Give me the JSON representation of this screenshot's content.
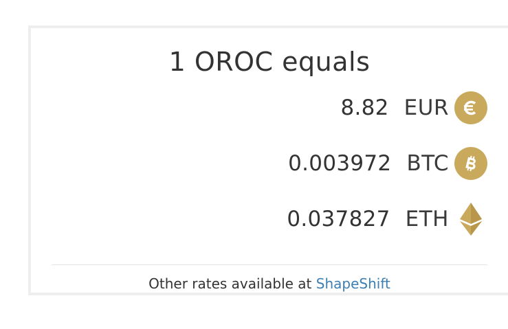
{
  "header": {
    "title": "1 OROC equals"
  },
  "rates": [
    {
      "value": "8.82",
      "unit": "EUR",
      "icon": "euro-icon"
    },
    {
      "value": "0.003972",
      "unit": "BTC",
      "icon": "bitcoin-icon"
    },
    {
      "value": "0.037827",
      "unit": "ETH",
      "icon": "ethereum-icon"
    }
  ],
  "footer": {
    "text": "Other rates available at",
    "link_label": "ShapeShift"
  },
  "colors": {
    "icon_gold": "#c9a95c",
    "link_blue": "#3d7fb2",
    "text": "#333333"
  }
}
